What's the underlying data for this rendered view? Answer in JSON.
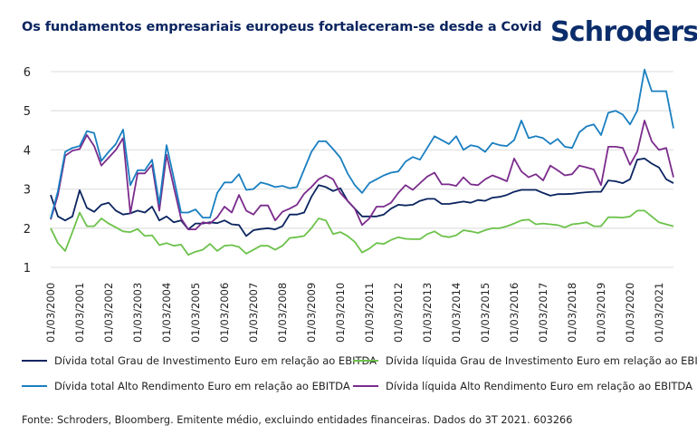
{
  "header": {
    "title": "Os fundamentos empresariais europeus fortaleceram-se desde a Covid",
    "logo_text": "Schroders"
  },
  "footer": {
    "source": "Fonte: Schroders, Bloomberg. Emitente médio, excluindo entidades financeiras. Dados do 3T 2021. 603266"
  },
  "colors": {
    "title": "#0b2560",
    "logo": "#0b2d6b",
    "gridline": "#e3e3e3"
  },
  "chart_data": {
    "type": "line",
    "title": "Os fundamentos empresariais europeus fortaleceram-se desde a Covid",
    "xlabel": "",
    "ylabel": "",
    "ylim": [
      1,
      6
    ],
    "yticks": [
      "1",
      "2",
      "3",
      "4",
      "5",
      "6"
    ],
    "grid": true,
    "legend_position": "bottom",
    "x_start": "01/03/2000",
    "x_frequency": "quarterly",
    "xticks": [
      "01/03/2000",
      "01/03/2001",
      "01/03/2002",
      "01/03/2003",
      "01/03/2004",
      "01/03/2005",
      "01/03/2006",
      "01/03/2007",
      "01/03/2008",
      "01/03/2009",
      "01/03/2010",
      "01/03/2011",
      "01/03/2012",
      "01/03/2013",
      "01/03/2014",
      "01/03/2015",
      "01/03/2016",
      "01/03/2017",
      "01/03/2018",
      "01/03/2019",
      "01/03/2020",
      "01/03/2021"
    ],
    "series": [
      {
        "name": "Dívida total Grau de Investimento Euro em relação ao EBITDA",
        "color": "#0b2560",
        "values": [
          2.85,
          2.3,
          2.2,
          2.3,
          2.97,
          2.52,
          2.42,
          2.6,
          2.65,
          2.45,
          2.35,
          2.38,
          2.45,
          2.4,
          2.55,
          2.2,
          2.3,
          2.15,
          2.2,
          1.97,
          2.12,
          2.12,
          2.15,
          2.13,
          2.2,
          2.1,
          2.08,
          1.8,
          1.95,
          1.98,
          2.0,
          1.97,
          2.05,
          2.35,
          2.35,
          2.4,
          2.8,
          3.1,
          3.05,
          2.95,
          3.02,
          2.7,
          2.5,
          2.3,
          2.3,
          2.3,
          2.35,
          2.5,
          2.6,
          2.58,
          2.6,
          2.7,
          2.75,
          2.75,
          2.62,
          2.62,
          2.65,
          2.68,
          2.65,
          2.72,
          2.7,
          2.78,
          2.8,
          2.85,
          2.93,
          2.98,
          2.98,
          2.98,
          2.9,
          2.83,
          2.87,
          2.87,
          2.88,
          2.9,
          2.92,
          2.93,
          2.93,
          3.22,
          3.2,
          3.15,
          3.25,
          3.75,
          3.78,
          3.65,
          3.55,
          3.25,
          3.15
        ]
      },
      {
        "name": "Dívida total Alto Rendimento Euro em relação ao EBITDA",
        "color": "#1a7fc1",
        "values": [
          2.25,
          2.95,
          3.95,
          4.05,
          4.1,
          4.48,
          4.43,
          3.72,
          3.95,
          4.15,
          4.52,
          3.1,
          3.48,
          3.48,
          3.75,
          2.62,
          4.12,
          3.28,
          2.4,
          2.4,
          2.48,
          2.27,
          2.27,
          2.9,
          3.17,
          3.17,
          3.38,
          2.98,
          3.0,
          3.17,
          3.12,
          3.05,
          3.08,
          3.02,
          3.05,
          3.5,
          3.95,
          4.22,
          4.22,
          4.02,
          3.8,
          3.4,
          3.1,
          2.9,
          3.15,
          3.25,
          3.35,
          3.42,
          3.45,
          3.7,
          3.82,
          3.75,
          4.05,
          4.35,
          4.25,
          4.15,
          4.35,
          4.0,
          4.12,
          4.08,
          3.95,
          4.18,
          4.12,
          4.1,
          4.25,
          4.75,
          4.3,
          4.35,
          4.3,
          4.15,
          4.28,
          4.08,
          4.05,
          4.45,
          4.6,
          4.65,
          4.38,
          4.95,
          5.0,
          4.9,
          4.65,
          5.0,
          6.05,
          5.5,
          5.5,
          5.5,
          4.55
        ]
      },
      {
        "name": "Dívida líquida Grau de Investimento Euro em relação ao EBITDA",
        "color": "#6cc24a",
        "values": [
          2.0,
          1.62,
          1.42,
          1.9,
          2.4,
          2.05,
          2.05,
          2.25,
          2.12,
          2.02,
          1.92,
          1.9,
          1.98,
          1.8,
          1.82,
          1.57,
          1.62,
          1.55,
          1.58,
          1.32,
          1.4,
          1.45,
          1.6,
          1.42,
          1.55,
          1.57,
          1.52,
          1.35,
          1.45,
          1.55,
          1.55,
          1.45,
          1.55,
          1.75,
          1.77,
          1.8,
          2.0,
          2.25,
          2.2,
          1.85,
          1.9,
          1.8,
          1.65,
          1.38,
          1.48,
          1.62,
          1.6,
          1.7,
          1.77,
          1.73,
          1.72,
          1.72,
          1.85,
          1.92,
          1.8,
          1.77,
          1.82,
          1.95,
          1.92,
          1.88,
          1.95,
          2.0,
          2.0,
          2.05,
          2.12,
          2.2,
          2.22,
          2.1,
          2.12,
          2.1,
          2.08,
          2.02,
          2.1,
          2.12,
          2.15,
          2.05,
          2.05,
          2.28,
          2.28,
          2.27,
          2.3,
          2.45,
          2.45,
          2.3,
          2.15,
          2.1,
          2.05
        ]
      },
      {
        "name": "Dívida líquida Alto Rendimento Euro em relação ao EBITDA",
        "color": "#7b2c8c",
        "values": [
          2.22,
          2.85,
          3.85,
          3.98,
          4.02,
          4.38,
          4.1,
          3.6,
          3.8,
          4.0,
          4.3,
          2.38,
          3.4,
          3.4,
          3.62,
          2.45,
          3.88,
          3.05,
          2.25,
          1.97,
          1.97,
          2.15,
          2.12,
          2.28,
          2.55,
          2.4,
          2.85,
          2.45,
          2.35,
          2.58,
          2.58,
          2.2,
          2.42,
          2.5,
          2.6,
          2.88,
          3.05,
          3.25,
          3.35,
          3.25,
          2.9,
          2.7,
          2.5,
          2.08,
          2.25,
          2.55,
          2.55,
          2.65,
          2.9,
          3.1,
          2.98,
          3.15,
          3.32,
          3.42,
          3.12,
          3.12,
          3.08,
          3.3,
          3.12,
          3.1,
          3.25,
          3.35,
          3.28,
          3.2,
          3.78,
          3.45,
          3.3,
          3.38,
          3.22,
          3.6,
          3.48,
          3.35,
          3.38,
          3.6,
          3.55,
          3.5,
          3.1,
          4.08,
          4.08,
          4.05,
          3.62,
          3.95,
          4.75,
          4.22,
          4.0,
          4.05,
          3.3
        ]
      }
    ]
  }
}
